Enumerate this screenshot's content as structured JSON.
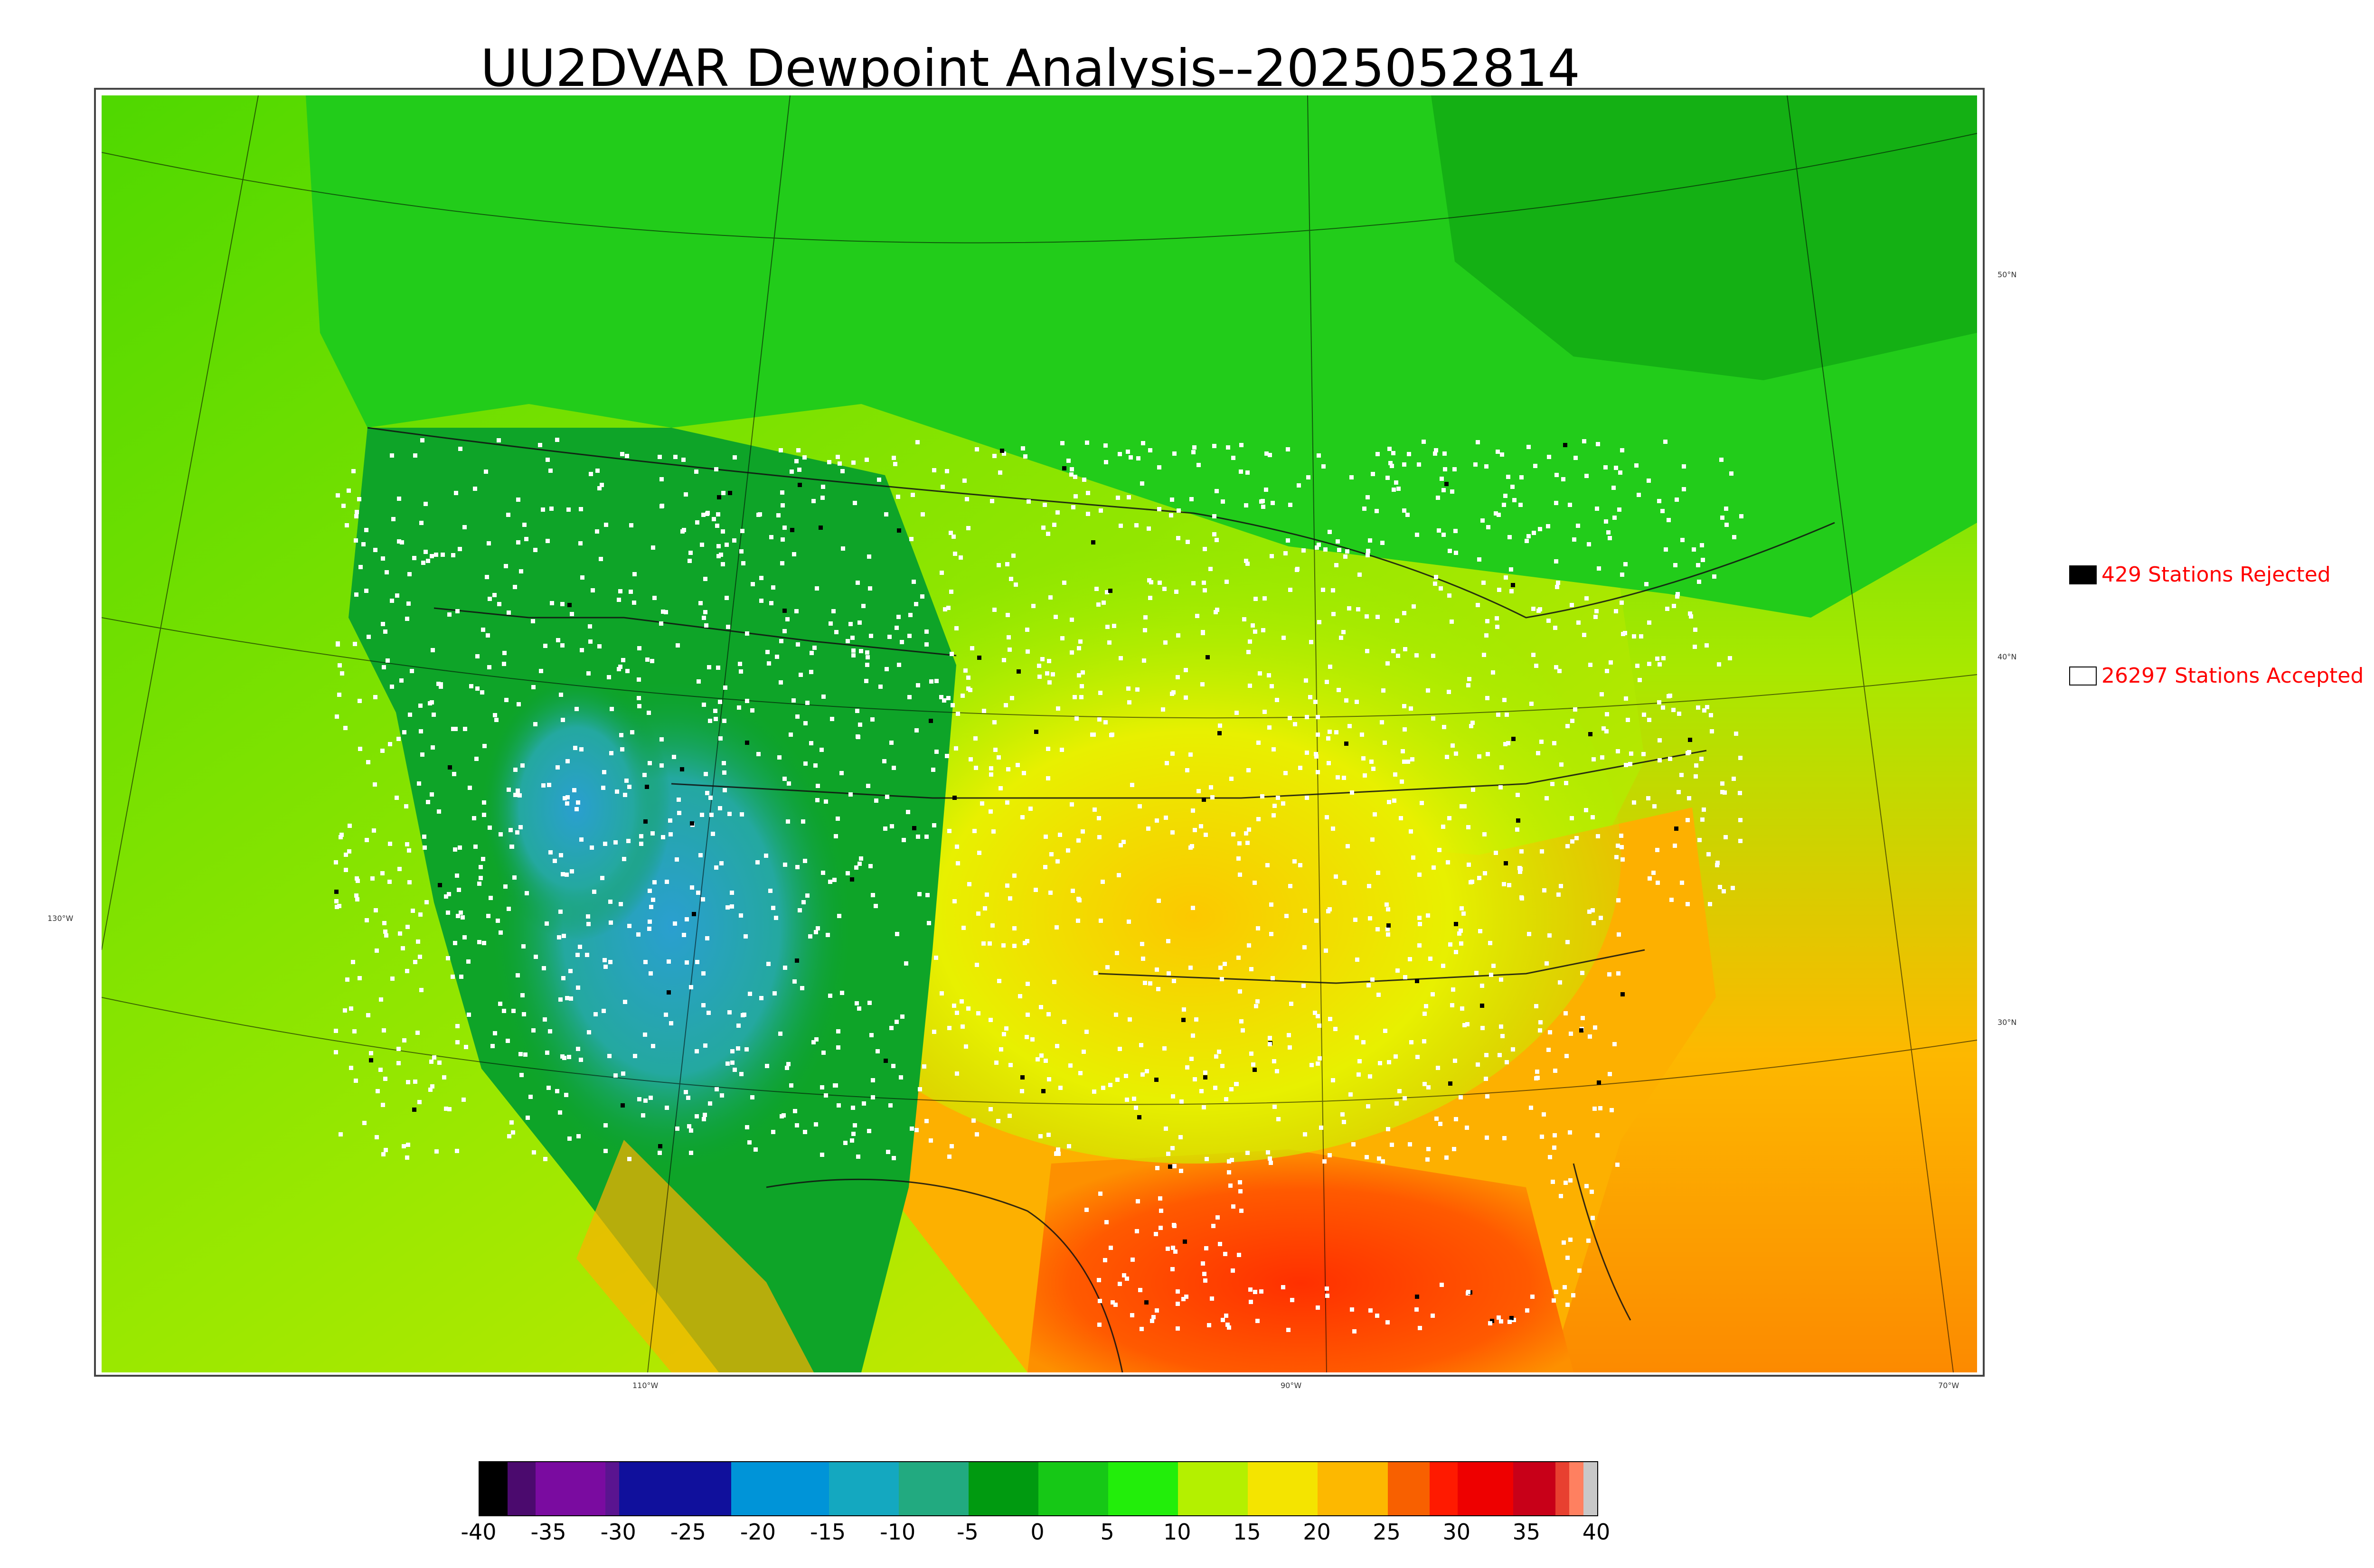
{
  "title": "UU2DVAR Dewpoint Analysis--2025052814",
  "graticule": {
    "longitudes": [
      "130°W",
      "110°W",
      "90°W",
      "70°W"
    ],
    "latitudes": [
      "50°N",
      "40°N",
      "30°N"
    ]
  },
  "legend": {
    "rejected": {
      "label": "429 Stations Rejected",
      "marker_color": "#000000"
    },
    "accepted": {
      "label": "26297 Stations Accepted",
      "marker_color": "#ffffff"
    }
  },
  "colorbar": {
    "ticks": [
      "-40",
      "-35",
      "-30",
      "-25",
      "-20",
      "-15",
      "-10",
      "-5",
      "0",
      "5",
      "10",
      "15",
      "20",
      "25",
      "30",
      "35",
      "40"
    ],
    "segments": [
      {
        "from": -40,
        "to": -38,
        "color": "#000000"
      },
      {
        "from": -38,
        "to": -36,
        "color": "#4b0a6e"
      },
      {
        "from": -36,
        "to": -31,
        "color": "#7a0ba0"
      },
      {
        "from": -31,
        "to": -30,
        "color": "#5a1490"
      },
      {
        "from": -30,
        "to": -22,
        "color": "#10109c"
      },
      {
        "from": -22,
        "to": -15,
        "color": "#0094d8"
      },
      {
        "from": -15,
        "to": -10,
        "color": "#14a8c0"
      },
      {
        "from": -10,
        "to": -5,
        "color": "#22aa80"
      },
      {
        "from": -5,
        "to": 0,
        "color": "#009a10"
      },
      {
        "from": 0,
        "to": 5,
        "color": "#16c816"
      },
      {
        "from": 5,
        "to": 10,
        "color": "#22ee0a"
      },
      {
        "from": 10,
        "to": 15,
        "color": "#b4f000"
      },
      {
        "from": 15,
        "to": 20,
        "color": "#f4e400"
      },
      {
        "from": 20,
        "to": 25,
        "color": "#fdb800"
      },
      {
        "from": 25,
        "to": 28,
        "color": "#f86000"
      },
      {
        "from": 28,
        "to": 30,
        "color": "#ff1a00"
      },
      {
        "from": 30,
        "to": 34,
        "color": "#ee0000"
      },
      {
        "from": 34,
        "to": 37,
        "color": "#c80018"
      },
      {
        "from": 37,
        "to": 38,
        "color": "#e84030"
      },
      {
        "from": 38,
        "to": 39,
        "color": "#ff8060"
      },
      {
        "from": 39,
        "to": 40,
        "color": "#c8c8c8"
      }
    ]
  },
  "colors": {
    "ocean_west": "#b8f000",
    "ocean_west_far": "#68e000",
    "gulf": "#ff4a00",
    "atlantic": "#fda400",
    "canada": "#1ecc18",
    "west_dry": "#0a9e1c",
    "southwest_blue": "#2aa8b8",
    "plains": "#f0ea00",
    "southeast": "#fd9c00",
    "station_accepted": "#ffffff",
    "station_rejected": "#000000"
  }
}
